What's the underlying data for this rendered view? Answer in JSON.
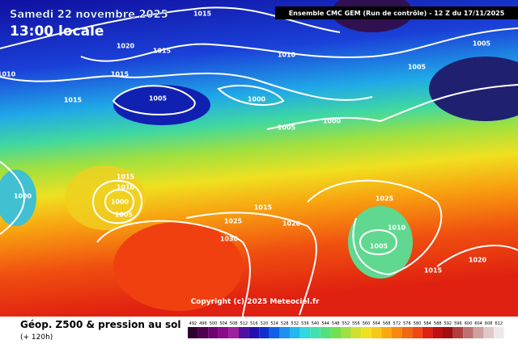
{
  "header": {
    "date": "Samedi 22 novembre 2025",
    "time": "13:00 locale",
    "model": "Ensemble CMC GEM  (Run de contrôle)  - 12 Z du 17/11/2025"
  },
  "isobars": [
    1015,
    1020,
    1015,
    1010,
    1010,
    1015,
    1015,
    1005,
    1000,
    1005,
    1005,
    1005,
    1000,
    1015,
    1010,
    1000,
    1005,
    1000,
    1025,
    1015,
    1020,
    1025,
    1030,
    1010,
    1005,
    1015,
    1020
  ],
  "footer": {
    "title": "Géop. Z500 & pression au sol",
    "lead": "(+ 120h)",
    "copyright": "Copyright (c) 2025 Meteociel.fr"
  },
  "scale": [
    492,
    496,
    500,
    504,
    508,
    512,
    516,
    520,
    524,
    528,
    532,
    536,
    540,
    544,
    548,
    552,
    556,
    560,
    564,
    568,
    572,
    576,
    580,
    584,
    588,
    592,
    596,
    600,
    604,
    608,
    612
  ]
}
